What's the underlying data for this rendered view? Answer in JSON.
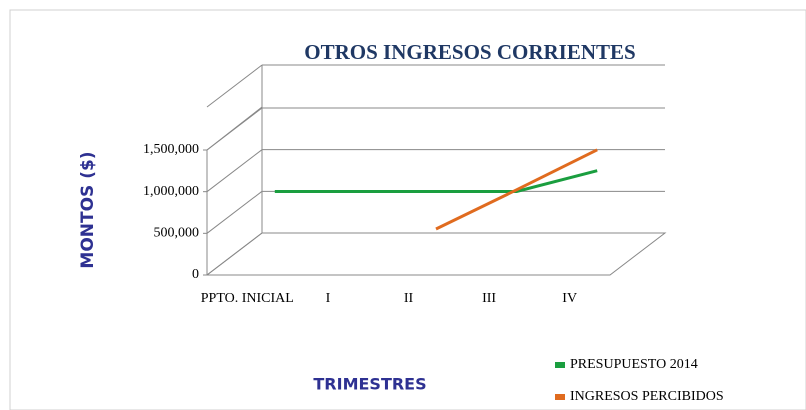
{
  "chart_data": {
    "type": "line",
    "title": "OTROS INGRESOS  CORRIENTES",
    "x_label": "TRIMESTRES",
    "y_label": "MONTOS ($)",
    "categories": [
      "PPTO. INICIAL",
      "I",
      "II",
      "III",
      "IV"
    ],
    "series": [
      {
        "name": "PRESUPUESTO 2014",
        "color": "#1a9e3f",
        "values": [
          750000,
          750000,
          750000,
          750000,
          1000000
        ]
      },
      {
        "name": "INGRESOS PERCIBIDOS",
        "color": "#e06b1f",
        "values": [
          null,
          null,
          300000,
          770000,
          1250000
        ]
      }
    ],
    "ylim": [
      0,
      1500000
    ],
    "yticks": [
      0,
      {
        "value": 500000,
        "label": "500,000"
      },
      {
        "value": 1000000,
        "label": "1,000,000"
      },
      {
        "value": 1500000,
        "label": "1,500,000"
      }
    ],
    "grid": true,
    "legend": "lower right"
  }
}
